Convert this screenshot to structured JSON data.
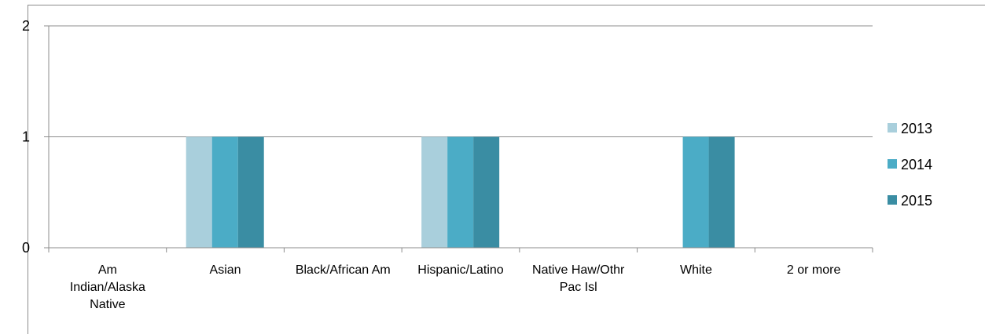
{
  "chart_data": {
    "type": "bar",
    "categories": [
      "Am Indian/Alaska Native",
      "Asian",
      "Black/African Am",
      "Hispanic/Latino",
      "Native Haw/Othr Pac Isl",
      "White",
      "2 or more"
    ],
    "category_lines": [
      [
        "Am",
        "Indian/Alaska",
        "Native"
      ],
      [
        "Asian"
      ],
      [
        "Black/African Am"
      ],
      [
        "Hispanic/Latino"
      ],
      [
        "Native Haw/Othr",
        "Pac Isl"
      ],
      [
        "White"
      ],
      [
        "2 or more"
      ]
    ],
    "series": [
      {
        "name": "2013",
        "color": "#a9cfdc",
        "values": [
          0,
          1,
          0,
          1,
          0,
          0,
          0
        ]
      },
      {
        "name": "2014",
        "color": "#4bacc6",
        "values": [
          0,
          1,
          0,
          1,
          0,
          1,
          0
        ]
      },
      {
        "name": "2015",
        "color": "#3a8da3",
        "values": [
          0,
          1,
          0,
          1,
          0,
          1,
          0
        ]
      }
    ],
    "y_ticks": [
      "0",
      "1",
      "2"
    ],
    "ylim": [
      0,
      2
    ],
    "grid": true,
    "legend_position": "right"
  }
}
